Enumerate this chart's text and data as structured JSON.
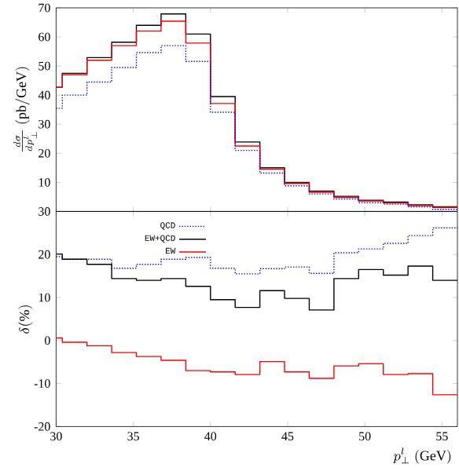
{
  "chart_data": [
    {
      "type": "step",
      "ylabel": "\\frac{d\\sigma}{dp_\\perp^l}\\ \\mathrm{(pb/GeV)}",
      "x": [
        30,
        30.4,
        32,
        33.6,
        35.2,
        36.8,
        38.4,
        40,
        41.6,
        43.2,
        44.8,
        46.4,
        48,
        49.6,
        51.2,
        52.8,
        54.4,
        56
      ],
      "xlim": [
        30,
        56
      ],
      "xticks": [
        30,
        35,
        40,
        45,
        50,
        55
      ],
      "ylim": [
        0,
        70
      ],
      "yticks": [
        10,
        20,
        30,
        40,
        50,
        60,
        70
      ],
      "tick_labels": "y",
      "series": [
        {
          "color": "#000000",
          "line_style": "solid",
          "values": [
            42.7,
            47.5,
            52.9,
            58.2,
            64,
            67.9,
            61,
            39.5,
            23.9,
            15,
            10,
            7,
            5.2,
            3.8,
            3.2,
            2.3,
            1.6,
            1.6
          ]
        },
        {
          "color": "#ff0000",
          "line_style": "solid",
          "values": [
            42.7,
            47,
            52,
            57,
            62,
            65.4,
            57.9,
            37.1,
            22.5,
            14.5,
            9.6,
            6.6,
            4.8,
            3.6,
            2.9,
            2,
            1.4,
            1.4
          ]
        },
        {
          "color": "#0000ff",
          "line_style": "dotted",
          "values": [
            35.5,
            40,
            44.5,
            49.5,
            54.6,
            57,
            51.6,
            34.1,
            21,
            13.2,
            8.8,
            6,
            4.3,
            3,
            2.5,
            1.6,
            0.7,
            0.7
          ]
        }
      ]
    },
    {
      "type": "step",
      "xlabel": "p_\\perp^l\\ \\mathrm{(GeV)}",
      "ylabel": "\\delta(\\%)",
      "x": [
        30,
        30.4,
        32,
        33.6,
        35.2,
        36.8,
        38.4,
        40,
        41.6,
        43.2,
        44.8,
        46.4,
        48,
        49.6,
        51.2,
        52.8,
        54.4,
        56
      ],
      "xlim": [
        30,
        56
      ],
      "xticks": [
        30,
        35,
        40,
        45,
        50,
        55
      ],
      "ylim": [
        -20,
        30
      ],
      "yticks": [
        -20,
        -10,
        0,
        10,
        20,
        30
      ],
      "legend": "top left",
      "series": [
        {
          "name": "QCD",
          "color": "#0000ff",
          "line_style": "dotted",
          "values": [
            19.5,
            18.9,
            18.9,
            16.8,
            17.7,
            18.9,
            19.3,
            16.8,
            15.5,
            16.7,
            17.1,
            15.6,
            20.4,
            21.3,
            22.6,
            24.4,
            26.2,
            26.2
          ]
        },
        {
          "name": "EW+QCD",
          "color": "#000000",
          "line_style": "solid",
          "values": [
            20.1,
            18.9,
            17.7,
            14.4,
            14,
            14.4,
            12.6,
            9.5,
            7.7,
            11.6,
            9.8,
            7.1,
            14.4,
            16.5,
            15.2,
            17.3,
            14,
            14
          ]
        },
        {
          "name": "EW",
          "color": "#ff0000",
          "line_style": "solid",
          "values": [
            0.6,
            -0.4,
            -1.2,
            -2.8,
            -3.7,
            -4.6,
            -7,
            -7.3,
            -7.9,
            -4.9,
            -7.3,
            -8.8,
            -5.9,
            -5.4,
            -7.9,
            -7.7,
            -12.6,
            -12.6
          ]
        }
      ]
    }
  ]
}
